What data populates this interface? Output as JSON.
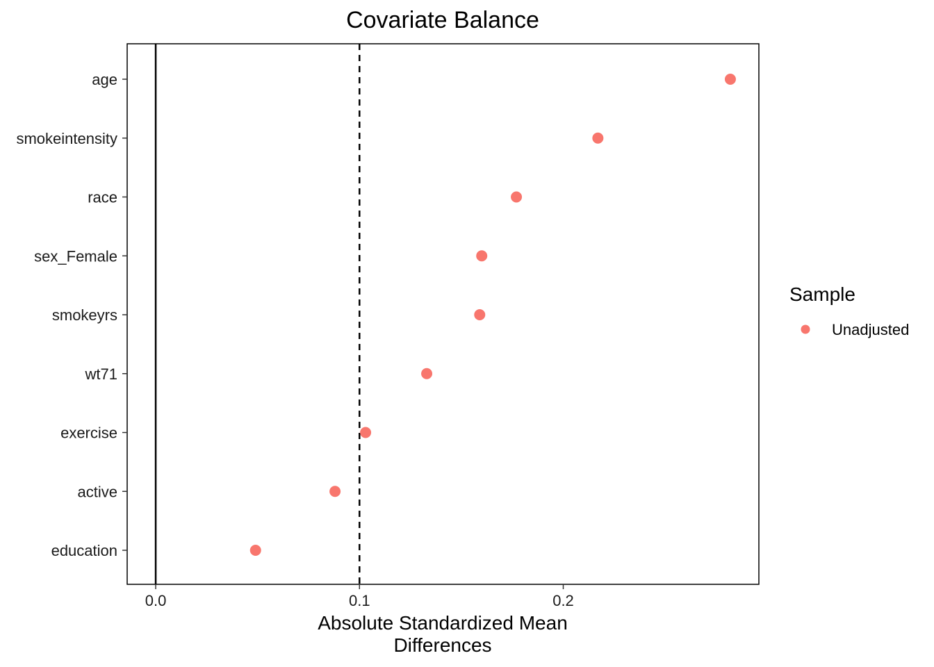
{
  "chart_data": {
    "type": "scatter",
    "title": "Covariate Balance",
    "xlabel_lines": [
      "Absolute Standardized Mean",
      "Differences"
    ],
    "ylabel": "",
    "xlim": [
      -0.014,
      0.296
    ],
    "x_ticks": [
      {
        "value": 0.0,
        "label": "0.0"
      },
      {
        "value": 0.1,
        "label": "0.1"
      },
      {
        "value": 0.2,
        "label": "0.2"
      }
    ],
    "reference_lines": [
      {
        "value": 0.0,
        "style": "solid"
      },
      {
        "value": 0.1,
        "style": "dashed"
      }
    ],
    "categories": [
      "age",
      "smokeintensity",
      "race",
      "sex_Female",
      "smokeyrs",
      "wt71",
      "exercise",
      "active",
      "education"
    ],
    "series": [
      {
        "name": "Unadjusted",
        "color": "#F8766D",
        "values": [
          0.282,
          0.217,
          0.177,
          0.16,
          0.159,
          0.133,
          0.103,
          0.088,
          0.049
        ]
      }
    ],
    "legend": {
      "title": "Sample",
      "position": "right"
    },
    "grid": false
  }
}
